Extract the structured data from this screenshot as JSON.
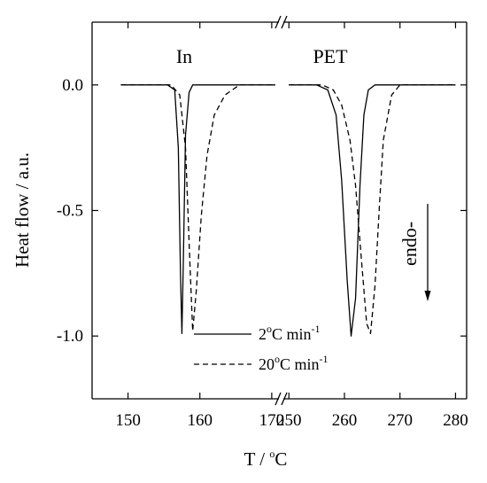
{
  "chart_data": {
    "type": "line",
    "xlabel": "T / °C",
    "ylabel": "Heat flow / a.u.",
    "xaxis_segments": [
      {
        "xlim": [
          145,
          171
        ],
        "ticks": [
          150,
          160,
          170
        ]
      },
      {
        "xlim": [
          249,
          282
        ],
        "ticks": [
          250,
          260,
          270,
          280
        ]
      }
    ],
    "ylim": [
      -1.25,
      0.25
    ],
    "yticks": [
      0.0,
      -0.5,
      -1.0
    ],
    "ytick_labels": [
      "0.0",
      "-0.5",
      "-1.0"
    ],
    "axis_break": "between 170 and 250 °C",
    "grid": false,
    "annotations": [
      {
        "text": "In"
      },
      {
        "text": "PET"
      },
      {
        "text": "endo-"
      }
    ],
    "legend": {
      "placement": "bottom-center",
      "entries": [
        {
          "label": "2",
          "suffix": "C min",
          "sup1": "o",
          "sup2": "-1",
          "style": "solid"
        },
        {
          "label": "20",
          "suffix": "C min",
          "sup1": "o",
          "sup2": "-1",
          "style": "dashed"
        }
      ]
    },
    "series": [
      {
        "style": "solid",
        "segments": [
          {
            "x": [
              149,
              155.5,
              156.5,
              157.0,
              157.3,
              157.5,
              157.7,
              158.0,
              158.5,
              159.0,
              165,
              170.5
            ],
            "y": [
              0.0,
              0.0,
              -0.02,
              -0.25,
              -0.75,
              -0.99,
              -0.7,
              -0.2,
              -0.03,
              0.0,
              0.0,
              0.0
            ]
          },
          {
            "x": [
              250,
              255,
              257,
              258.5,
              259.5,
              260.5,
              261.2,
              262.0,
              262.8,
              263.5,
              264.3,
              265.5,
              267,
              280
            ],
            "y": [
              0.0,
              0.0,
              -0.02,
              -0.12,
              -0.38,
              -0.78,
              -1.0,
              -0.85,
              -0.4,
              -0.12,
              -0.02,
              0.0,
              0.0,
              0.0
            ]
          }
        ]
      },
      {
        "style": "dashed",
        "segments": [
          {
            "x": [
              149,
              156.0,
              157.2,
              158.0,
              158.6,
              159.0,
              159.5,
              160.2,
              161.0,
              162.0,
              163.5,
              165.5,
              170.5
            ],
            "y": [
              0.0,
              0.0,
              -0.04,
              -0.25,
              -0.7,
              -0.98,
              -0.82,
              -0.52,
              -0.28,
              -0.12,
              -0.04,
              0.0,
              0.0
            ]
          },
          {
            "x": [
              250,
              256,
              258,
              259.5,
              261.0,
              262.0,
              263.0,
              264.0,
              264.7,
              265.5,
              266.3,
              267.0,
              268.5,
              270,
              280
            ],
            "y": [
              0.0,
              0.0,
              -0.02,
              -0.08,
              -0.22,
              -0.4,
              -0.68,
              -0.95,
              -0.99,
              -0.8,
              -0.48,
              -0.22,
              -0.04,
              0.0,
              0.0
            ]
          }
        ]
      }
    ]
  }
}
